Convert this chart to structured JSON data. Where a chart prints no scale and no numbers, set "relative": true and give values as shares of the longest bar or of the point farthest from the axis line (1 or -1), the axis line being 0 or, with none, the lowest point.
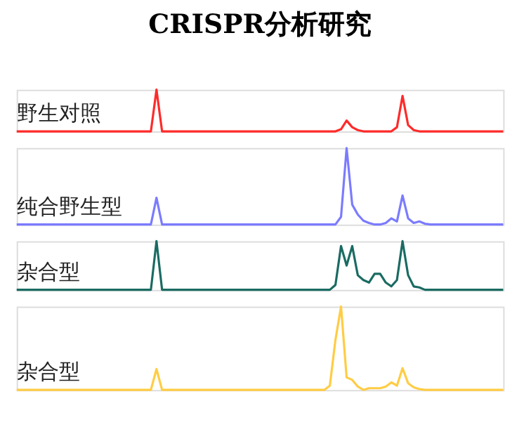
{
  "chart_data": [
    {
      "type": "line",
      "title": "CRISPR分析研究",
      "relative": true,
      "categories": [
        null,
        null,
        null,
        null,
        null,
        null,
        null,
        null,
        null,
        null,
        null,
        null,
        null,
        null,
        null,
        null,
        null,
        null,
        null,
        null,
        null,
        null,
        null,
        null,
        null,
        null,
        null,
        null,
        null,
        null,
        null,
        null,
        null,
        null,
        null,
        null,
        null,
        null,
        null,
        null,
        null,
        null,
        null,
        null,
        null,
        null,
        null,
        null,
        null,
        null,
        null,
        null,
        null,
        null,
        null,
        null,
        null,
        null,
        null,
        null,
        null,
        null,
        null,
        null,
        null,
        null,
        null,
        null,
        null,
        null,
        null,
        null,
        null,
        null,
        null,
        null,
        null,
        null,
        null,
        null,
        null,
        null,
        null,
        null,
        null,
        null,
        null,
        null
      ],
      "series": [
        {
          "name": "野生对照",
          "color": "#ff2a2a",
          "values": [
            0,
            0,
            0,
            0,
            0,
            0,
            0,
            0,
            0,
            0,
            0,
            0,
            0,
            0,
            0,
            0,
            0,
            0,
            0,
            0,
            0,
            0,
            0,
            0,
            0,
            1,
            0,
            0,
            0,
            0,
            0,
            0,
            0,
            0,
            0,
            0,
            0,
            0,
            0,
            0,
            0,
            0,
            0,
            0,
            0,
            0,
            0,
            0,
            0,
            0,
            0,
            0,
            0,
            0,
            0,
            0,
            0,
            0,
            0.05,
            0.26,
            0.1,
            0.03,
            0,
            0,
            0,
            0,
            0,
            0,
            0.1,
            0.85,
            0.15,
            0.03,
            0,
            0,
            0,
            0,
            0,
            0,
            0,
            0,
            0,
            0,
            0,
            0,
            0,
            0,
            0,
            0
          ]
        }
      ]
    },
    {
      "type": "line",
      "relative": true,
      "categories": [
        null,
        null,
        null,
        null,
        null,
        null,
        null,
        null,
        null,
        null,
        null,
        null,
        null,
        null,
        null,
        null,
        null,
        null,
        null,
        null,
        null,
        null,
        null,
        null,
        null,
        null,
        null,
        null,
        null,
        null,
        null,
        null,
        null,
        null,
        null,
        null,
        null,
        null,
        null,
        null,
        null,
        null,
        null,
        null,
        null,
        null,
        null,
        null,
        null,
        null,
        null,
        null,
        null,
        null,
        null,
        null,
        null,
        null,
        null,
        null,
        null,
        null,
        null,
        null,
        null,
        null,
        null,
        null,
        null,
        null,
        null,
        null,
        null,
        null,
        null,
        null,
        null,
        null,
        null,
        null,
        null,
        null,
        null,
        null,
        null,
        null,
        null,
        null
      ],
      "series": [
        {
          "name": "纯合野生型",
          "color": "#7b7bff",
          "values": [
            0,
            0,
            0,
            0,
            0,
            0,
            0,
            0,
            0,
            0,
            0,
            0,
            0,
            0,
            0,
            0,
            0,
            0,
            0,
            0,
            0,
            0,
            0,
            0,
            0,
            0.35,
            0,
            0,
            0,
            0,
            0,
            0,
            0,
            0,
            0,
            0,
            0,
            0,
            0,
            0,
            0,
            0,
            0,
            0,
            0,
            0,
            0,
            0,
            0,
            0,
            0,
            0,
            0,
            0,
            0,
            0,
            0,
            0,
            0.1,
            1,
            0.26,
            0.13,
            0.05,
            0.02,
            0,
            0,
            0.02,
            0.08,
            0.04,
            0.38,
            0.08,
            0.02,
            0.04,
            0.01,
            0,
            0,
            0,
            0,
            0,
            0,
            0,
            0,
            0,
            0,
            0,
            0,
            0,
            0
          ]
        }
      ]
    },
    {
      "type": "line",
      "relative": true,
      "categories": [
        null,
        null,
        null,
        null,
        null,
        null,
        null,
        null,
        null,
        null,
        null,
        null,
        null,
        null,
        null,
        null,
        null,
        null,
        null,
        null,
        null,
        null,
        null,
        null,
        null,
        null,
        null,
        null,
        null,
        null,
        null,
        null,
        null,
        null,
        null,
        null,
        null,
        null,
        null,
        null,
        null,
        null,
        null,
        null,
        null,
        null,
        null,
        null,
        null,
        null,
        null,
        null,
        null,
        null,
        null,
        null,
        null,
        null,
        null,
        null,
        null,
        null,
        null,
        null,
        null,
        null,
        null,
        null,
        null,
        null,
        null,
        null,
        null,
        null,
        null,
        null,
        null,
        null,
        null,
        null,
        null,
        null,
        null,
        null,
        null,
        null,
        null,
        null
      ],
      "series": [
        {
          "name": "杂合型",
          "color": "#1a6b62",
          "values": [
            0,
            0,
            0,
            0,
            0,
            0,
            0,
            0,
            0,
            0,
            0,
            0,
            0,
            0,
            0,
            0,
            0,
            0,
            0,
            0,
            0,
            0,
            0,
            0,
            0,
            1,
            0,
            0,
            0,
            0,
            0,
            0,
            0,
            0,
            0,
            0,
            0,
            0,
            0,
            0,
            0,
            0,
            0,
            0,
            0,
            0,
            0,
            0,
            0,
            0,
            0,
            0,
            0,
            0,
            0,
            0,
            0,
            0.1,
            0.9,
            0.5,
            0.9,
            0.3,
            0.2,
            0.15,
            0.33,
            0.33,
            0.15,
            0.07,
            0.2,
            1,
            0.3,
            0.07,
            0.05,
            0,
            0,
            0,
            0,
            0,
            0,
            0,
            0,
            0,
            0,
            0,
            0,
            0,
            0,
            0
          ]
        }
      ]
    },
    {
      "type": "line",
      "relative": true,
      "categories": [
        null,
        null,
        null,
        null,
        null,
        null,
        null,
        null,
        null,
        null,
        null,
        null,
        null,
        null,
        null,
        null,
        null,
        null,
        null,
        null,
        null,
        null,
        null,
        null,
        null,
        null,
        null,
        null,
        null,
        null,
        null,
        null,
        null,
        null,
        null,
        null,
        null,
        null,
        null,
        null,
        null,
        null,
        null,
        null,
        null,
        null,
        null,
        null,
        null,
        null,
        null,
        null,
        null,
        null,
        null,
        null,
        null,
        null,
        null,
        null,
        null,
        null,
        null,
        null,
        null,
        null,
        null,
        null,
        null,
        null,
        null,
        null,
        null,
        null,
        null,
        null,
        null,
        null,
        null,
        null,
        null,
        null,
        null,
        null,
        null,
        null,
        null,
        null
      ],
      "series": [
        {
          "name": "杂合型",
          "color": "#ffcc44",
          "values": [
            0,
            0,
            0,
            0,
            0,
            0,
            0,
            0,
            0,
            0,
            0,
            0,
            0,
            0,
            0,
            0,
            0,
            0,
            0,
            0,
            0,
            0,
            0,
            0,
            0,
            0.25,
            0,
            0,
            0,
            0,
            0,
            0,
            0,
            0,
            0,
            0,
            0,
            0,
            0,
            0,
            0,
            0,
            0,
            0,
            0,
            0,
            0,
            0,
            0,
            0,
            0,
            0,
            0,
            0,
            0,
            0,
            0.05,
            0.6,
            1,
            0.15,
            0.12,
            0.04,
            0,
            0.02,
            0.02,
            0.02,
            0.04,
            0.09,
            0.05,
            0.26,
            0.08,
            0.03,
            0.01,
            0,
            0,
            0,
            0,
            0,
            0,
            0,
            0,
            0,
            0,
            0,
            0,
            0,
            0,
            0
          ]
        }
      ]
    }
  ]
}
